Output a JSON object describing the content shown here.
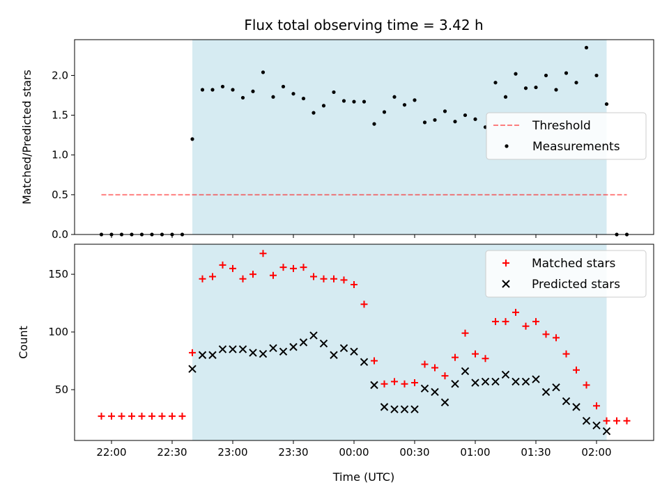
{
  "chart_data": [
    {
      "type": "scatter",
      "title": "Flux total observing time = 3.42 h",
      "xlabel": "",
      "ylabel": "Matched/Predicted stars",
      "x_tick_labels": [
        "22:00",
        "22:30",
        "23:00",
        "23:30",
        "00:00",
        "00:30",
        "01:00",
        "01:30",
        "02:00"
      ],
      "ylim": [
        0,
        2.45
      ],
      "yticks": [
        0.0,
        0.5,
        1.0,
        1.5,
        2.0
      ],
      "ytick_labels": [
        "0.0",
        "0.5",
        "1.0",
        "1.5",
        "2.0"
      ],
      "highlight_span": {
        "start": "22:40",
        "end": "02:05",
        "color": "#add8e6"
      },
      "threshold": {
        "name": "Threshold",
        "value": 0.5,
        "x_start": "21:55",
        "x_end": "02:15",
        "color": "#ff0000",
        "style": "dashed"
      },
      "legend": {
        "placement": "center-right",
        "entries": [
          "Threshold",
          "Measurements"
        ]
      },
      "series": [
        {
          "name": "Measurements",
          "color": "#000000",
          "marker": "dot",
          "x": [
            "21:55",
            "22:00",
            "22:05",
            "22:10",
            "22:15",
            "22:20",
            "22:25",
            "22:30",
            "22:35",
            "22:40",
            "22:45",
            "22:50",
            "22:55",
            "23:00",
            "23:05",
            "23:10",
            "23:15",
            "23:20",
            "23:25",
            "23:30",
            "23:35",
            "23:40",
            "23:45",
            "23:50",
            "23:55",
            "00:00",
            "00:05",
            "00:10",
            "00:15",
            "00:20",
            "00:25",
            "00:30",
            "00:35",
            "00:40",
            "00:45",
            "00:50",
            "00:55",
            "01:00",
            "01:05",
            "01:10",
            "01:15",
            "01:20",
            "01:25",
            "01:30",
            "01:35",
            "01:40",
            "01:45",
            "01:50",
            "01:55",
            "02:00",
            "02:05",
            "02:10",
            "02:15"
          ],
          "y": [
            0,
            0,
            0,
            0,
            0,
            0,
            0,
            0,
            0,
            1.2,
            1.82,
            1.82,
            1.86,
            1.82,
            1.72,
            1.8,
            2.04,
            1.73,
            1.86,
            1.77,
            1.71,
            1.53,
            1.62,
            1.79,
            1.68,
            1.67,
            1.67,
            1.39,
            1.54,
            1.73,
            1.63,
            1.69,
            1.41,
            1.44,
            1.55,
            1.42,
            1.5,
            1.45,
            1.35,
            1.91,
            1.73,
            2.02,
            1.84,
            1.85,
            2.0,
            1.82,
            2.03,
            1.91,
            2.35,
            2.0,
            1.64,
            0,
            0
          ]
        }
      ]
    },
    {
      "type": "scatter",
      "title": "",
      "xlabel": "Time (UTC)",
      "ylabel": "Count",
      "x_tick_labels": [
        "22:00",
        "22:30",
        "23:00",
        "23:30",
        "00:00",
        "00:30",
        "01:00",
        "01:30",
        "02:00"
      ],
      "ylim": [
        6,
        176
      ],
      "yticks": [
        50,
        100,
        150
      ],
      "ytick_labels": [
        "50",
        "100",
        "150"
      ],
      "highlight_span": {
        "start": "22:40",
        "end": "02:05",
        "color": "#add8e6"
      },
      "legend": {
        "placement": "top-right",
        "entries": [
          "Matched stars",
          "Predicted stars"
        ]
      },
      "series": [
        {
          "name": "Matched stars",
          "color": "#ff0000",
          "marker": "plus",
          "x": [
            "21:55",
            "22:00",
            "22:05",
            "22:10",
            "22:15",
            "22:20",
            "22:25",
            "22:30",
            "22:35",
            "22:40",
            "22:45",
            "22:50",
            "22:55",
            "23:00",
            "23:05",
            "23:10",
            "23:15",
            "23:20",
            "23:25",
            "23:30",
            "23:35",
            "23:40",
            "23:45",
            "23:50",
            "23:55",
            "00:00",
            "00:05",
            "00:10",
            "00:15",
            "00:20",
            "00:25",
            "00:30",
            "00:35",
            "00:40",
            "00:45",
            "00:50",
            "00:55",
            "01:00",
            "01:05",
            "01:10",
            "01:15",
            "01:20",
            "01:25",
            "01:30",
            "01:35",
            "01:40",
            "01:45",
            "01:50",
            "01:55",
            "02:00",
            "02:05",
            "02:10",
            "02:15"
          ],
          "y": [
            27,
            27,
            27,
            27,
            27,
            27,
            27,
            27,
            27,
            82,
            146,
            148,
            158,
            155,
            146,
            150,
            168,
            149,
            156,
            155,
            156,
            148,
            146,
            146,
            145,
            141,
            124,
            75,
            55,
            57,
            55,
            56,
            72,
            69,
            62,
            78,
            99,
            81,
            77,
            109,
            109,
            117,
            105,
            109,
            98,
            95,
            81,
            67,
            54,
            36,
            23,
            23,
            23
          ]
        },
        {
          "name": "Predicted stars",
          "color": "#000000",
          "marker": "x",
          "x": [
            "22:40",
            "22:45",
            "22:50",
            "22:55",
            "23:00",
            "23:05",
            "23:10",
            "23:15",
            "23:20",
            "23:25",
            "23:30",
            "23:35",
            "23:40",
            "23:45",
            "23:50",
            "23:55",
            "00:00",
            "00:05",
            "00:10",
            "00:15",
            "00:20",
            "00:25",
            "00:30",
            "00:35",
            "00:40",
            "00:45",
            "00:50",
            "00:55",
            "01:00",
            "01:05",
            "01:10",
            "01:15",
            "01:20",
            "01:25",
            "01:30",
            "01:35",
            "01:40",
            "01:45",
            "01:50",
            "01:55",
            "02:00",
            "02:05"
          ],
          "y": [
            68,
            80,
            80,
            85,
            85,
            85,
            82,
            81,
            86,
            83,
            87,
            91,
            97,
            90,
            80,
            86,
            83,
            74,
            54,
            35,
            33,
            33,
            33,
            51,
            48,
            39,
            55,
            66,
            56,
            57,
            57,
            63,
            57,
            57,
            59,
            48,
            52,
            40,
            35,
            23,
            19,
            14
          ]
        }
      ]
    }
  ]
}
